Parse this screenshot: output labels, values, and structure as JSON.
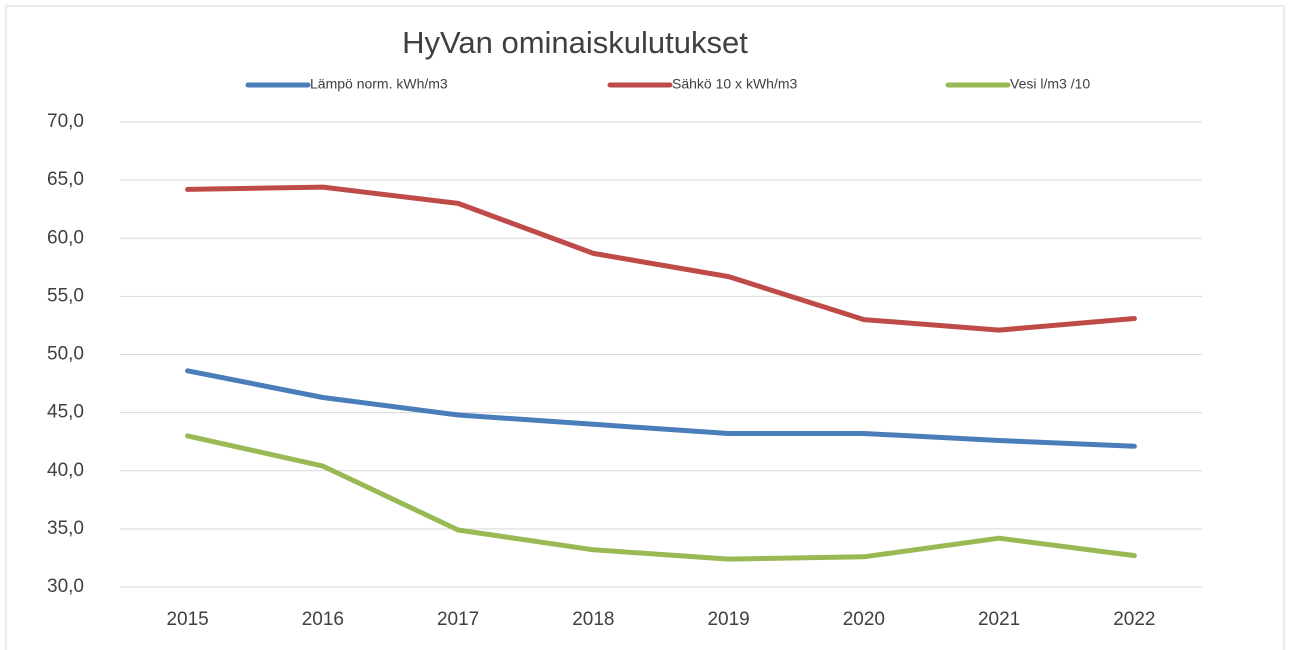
{
  "chart_data": {
    "type": "line",
    "title": "HyVan ominaiskulutukset",
    "categories": [
      "2015",
      "2016",
      "2017",
      "2018",
      "2019",
      "2020",
      "2021",
      "2022"
    ],
    "series": [
      {
        "name": "Lämpö norm. kWh/m3",
        "color": "#4a7ebb",
        "values": [
          48.6,
          46.3,
          44.8,
          44.0,
          43.2,
          43.2,
          42.6,
          42.1
        ]
      },
      {
        "name": "Sähkö 10 x kWh/m3",
        "color": "#be4b48",
        "values": [
          64.2,
          64.4,
          63.0,
          58.7,
          56.7,
          53.0,
          52.1,
          53.1
        ]
      },
      {
        "name": "Vesi  l/m3 /10",
        "color": "#98b954",
        "values": [
          43.0,
          40.4,
          34.9,
          33.2,
          32.4,
          32.6,
          34.2,
          32.7
        ]
      }
    ],
    "ylim": [
      30,
      70
    ],
    "yticks": [
      {
        "value": 30,
        "label": "30,0"
      },
      {
        "value": 35,
        "label": "35,0"
      },
      {
        "value": 40,
        "label": "40,0"
      },
      {
        "value": 45,
        "label": "45,0"
      },
      {
        "value": 50,
        "label": "50,0"
      },
      {
        "value": 55,
        "label": "55,0"
      },
      {
        "value": 60,
        "label": "60,0"
      },
      {
        "value": 65,
        "label": "65,0"
      },
      {
        "value": 70,
        "label": "70,0"
      }
    ],
    "grid": true,
    "legend": "top"
  }
}
